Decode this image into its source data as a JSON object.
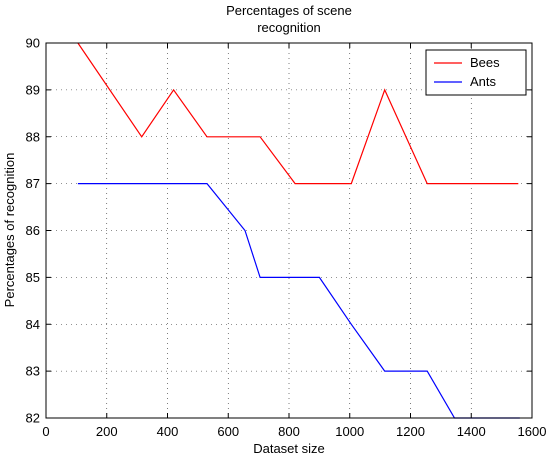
{
  "chart_data": {
    "type": "line",
    "title_lines": [
      "Percentages of scene",
      "recognition"
    ],
    "xlabel": "Dataset size",
    "ylabel": "Percentages of recognition",
    "xlim": [
      0,
      1600
    ],
    "ylim": [
      82,
      90
    ],
    "xticks": [
      0,
      200,
      400,
      600,
      800,
      1000,
      1200,
      1400,
      1600
    ],
    "yticks": [
      82,
      83,
      84,
      85,
      86,
      87,
      88,
      89,
      90
    ],
    "grid": true,
    "legend_position": "top-right",
    "series": [
      {
        "name": "Bees",
        "color": "#ff0000",
        "x": [
          105,
          315,
          420,
          530,
          705,
          820,
          1005,
          1115,
          1255,
          1555
        ],
        "y": [
          90,
          88,
          89,
          88,
          88,
          87,
          87,
          89,
          87,
          87
        ]
      },
      {
        "name": "Ants",
        "color": "#0000ff",
        "x": [
          105,
          530,
          655,
          705,
          900,
          1005,
          1115,
          1255,
          1345,
          1560
        ],
        "y": [
          87,
          87,
          86,
          85,
          85,
          84,
          83,
          83,
          82,
          82
        ]
      }
    ]
  }
}
